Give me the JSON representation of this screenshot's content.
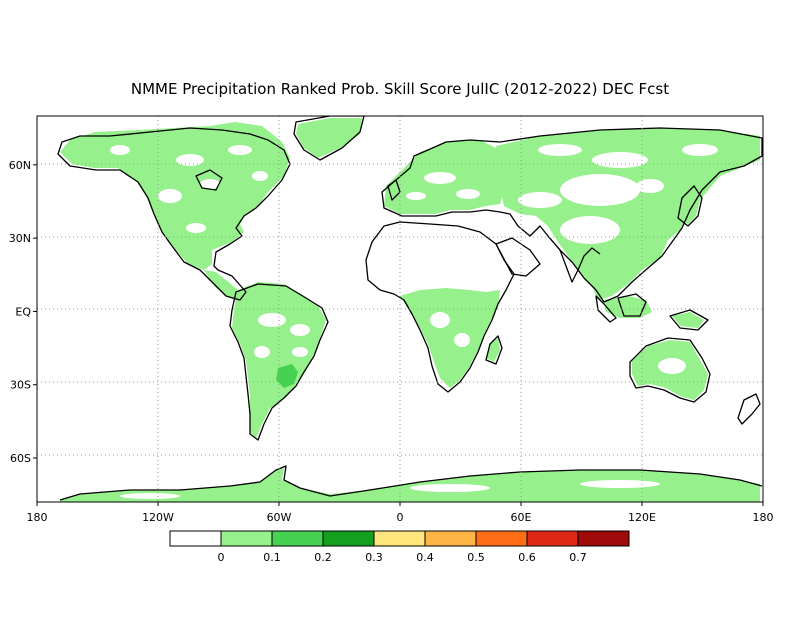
{
  "title": "NMME Precipitation Ranked Prob. Skill Score JulIC (2012-2022) DEC Fcst",
  "map": {
    "projection": "equirectangular",
    "lon_range": [
      -180,
      180
    ],
    "lat_range": [
      -78,
      80
    ],
    "grid": "dotted",
    "x_ticks": [
      {
        "lon": -180,
        "label": "180"
      },
      {
        "lon": -120,
        "label": "120W"
      },
      {
        "lon": -60,
        "label": "60W"
      },
      {
        "lon": 0,
        "label": "0"
      },
      {
        "lon": 60,
        "label": "60E"
      },
      {
        "lon": 120,
        "label": "120E"
      },
      {
        "lon": 180,
        "label": "180"
      }
    ],
    "y_ticks": [
      {
        "lat": 60,
        "label": "60N"
      },
      {
        "lat": 30,
        "label": "30N"
      },
      {
        "lat": 0,
        "label": "EQ"
      },
      {
        "lat": -30,
        "label": "30S"
      },
      {
        "lat": -60,
        "label": "60S"
      }
    ]
  },
  "colorbar": {
    "colors": [
      "#ffffff",
      "#96f08c",
      "#46d250",
      "#14a01e",
      "#ffe67d",
      "#ffb446",
      "#ff6e14",
      "#dc2814",
      "#a00a0a"
    ],
    "labels": [
      "0",
      "0.1",
      "0.2",
      "0.3",
      "0.4",
      "0.5",
      "0.6",
      "0.7"
    ]
  },
  "colors": {
    "land_skill_low": "#96f08c",
    "land_skill_mid": "#46d250",
    "coast": "#000000"
  }
}
